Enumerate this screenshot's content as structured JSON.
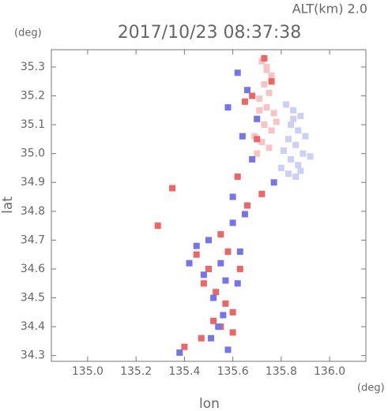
{
  "chart_data": {
    "type": "scatter",
    "title": "2017/10/23 08:37:38",
    "subtitle": "ALT(km) 2.0",
    "x_label": "lon",
    "x_unit": "(deg)",
    "y_label": "lat",
    "y_unit": "(deg)",
    "xlim": [
      134.85,
      136.15
    ],
    "ylim": [
      34.28,
      35.36
    ],
    "xticks": [
      {
        "value": 135,
        "label": "135.0"
      },
      135.2,
      135.4,
      135.6,
      135.8,
      {
        "value": 136,
        "label": "136.0"
      }
    ],
    "yticks": [
      34.3,
      34.4,
      34.5,
      34.6,
      34.7,
      34.8,
      34.9,
      {
        "value": 35,
        "label": "35.0"
      },
      35.1,
      35.2,
      35.3
    ],
    "series": [
      {
        "color": "#f6c4c4",
        "x": [
          135.72,
          135.74,
          135.76,
          135.73,
          135.75,
          135.71,
          135.74,
          135.77,
          135.7,
          135.73,
          135.76,
          135.69,
          135.72,
          135.75,
          135.78,
          135.71,
          135.74,
          135.7
        ],
        "y": [
          35.32,
          35.29,
          35.27,
          35.24,
          35.21,
          35.19,
          35.16,
          35.14,
          35.12,
          35.1,
          35.08,
          35.06,
          35.04,
          35.02,
          35.11,
          35.15,
          35.3,
          35.0
        ]
      },
      {
        "color": "#cdd0f6",
        "x": [
          135.82,
          135.85,
          135.88,
          135.84,
          135.87,
          135.9,
          135.83,
          135.86,
          135.89,
          135.81,
          135.84,
          135.87,
          135.8,
          135.83,
          135.86,
          135.92,
          135.85,
          135.88
        ],
        "y": [
          35.17,
          35.15,
          35.13,
          35.1,
          35.08,
          35.06,
          35.05,
          35.03,
          35.0,
          35.01,
          34.98,
          34.96,
          34.95,
          34.93,
          34.92,
          34.99,
          35.12,
          34.94
        ]
      },
      {
        "color": "#f06464",
        "x": [
          135.73,
          135.68,
          135.65,
          135.76,
          135.7,
          135.62,
          135.55,
          135.58,
          135.5,
          135.53,
          135.57,
          135.6,
          135.52,
          135.48,
          135.45,
          135.29,
          135.66,
          135.72,
          135.6,
          135.55,
          135.4,
          135.47,
          135.35,
          135.63
        ],
        "y": [
          35.33,
          35.2,
          35.18,
          35.25,
          35.05,
          34.92,
          34.72,
          34.66,
          34.6,
          34.52,
          34.48,
          34.45,
          34.42,
          34.55,
          34.65,
          34.75,
          34.82,
          34.86,
          34.38,
          34.4,
          34.33,
          34.36,
          34.88,
          34.6
        ]
      },
      {
        "color": "#7474f0",
        "x": [
          135.62,
          135.66,
          135.7,
          135.64,
          135.68,
          135.58,
          135.6,
          135.5,
          135.55,
          135.48,
          135.52,
          135.56,
          135.62,
          135.45,
          135.42,
          135.54,
          135.58,
          135.65,
          135.77,
          135.6,
          135.38,
          135.63,
          135.51,
          135.57
        ],
        "y": [
          35.28,
          35.22,
          35.12,
          35.06,
          34.98,
          35.16,
          34.85,
          34.7,
          34.62,
          34.58,
          34.5,
          34.44,
          34.55,
          34.68,
          34.62,
          34.4,
          34.32,
          34.79,
          34.9,
          34.76,
          34.31,
          34.66,
          34.36,
          34.56
        ]
      }
    ]
  }
}
